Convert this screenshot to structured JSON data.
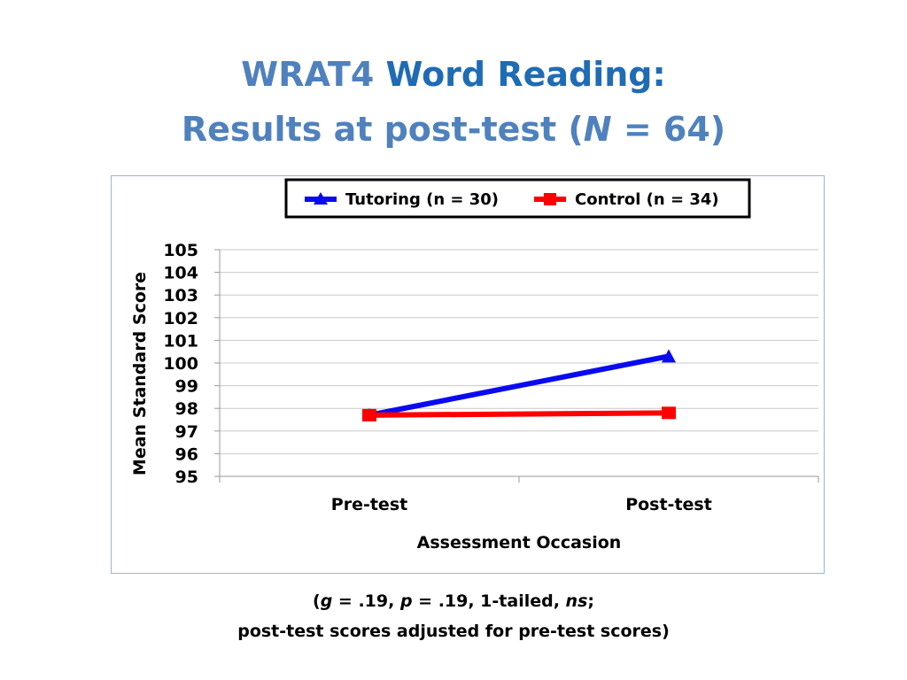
{
  "title": {
    "line1_a": "WRAT4",
    "line1_b": "Word Reading:",
    "line2_a": "Results at post-test (",
    "line2_n": "N",
    "line2_b": " = 64)"
  },
  "colors": {
    "title_muted": "#4f81bd",
    "title_accent": "#1f6cb5",
    "tutoring": "#0a0af0",
    "control": "#ff0000"
  },
  "chart_data": {
    "type": "line",
    "categories": [
      "Pre-test",
      "Post-test"
    ],
    "series": [
      {
        "name": "Tutoring (n = 30)",
        "values": [
          97.7,
          100.3
        ],
        "color": "#0a0af0",
        "marker": "triangle"
      },
      {
        "name": "Control (n = 34)",
        "values": [
          97.7,
          97.8
        ],
        "color": "#ff0000",
        "marker": "square"
      }
    ],
    "xlabel": "Assessment Occasion",
    "ylabel": "Mean Standard Score",
    "ylim": [
      95,
      105
    ],
    "yticks": [
      95,
      96,
      97,
      98,
      99,
      100,
      101,
      102,
      103,
      104,
      105
    ],
    "grid": true,
    "legend_position": "top"
  },
  "footnote": {
    "open": "(",
    "g": "g",
    "g_val": " = .19, ",
    "p": "p",
    "p_val": " = .19, 1-tailed, ",
    "ns": "ns",
    "close": ";",
    "line2": "post-test scores adjusted for pre-test scores)"
  }
}
